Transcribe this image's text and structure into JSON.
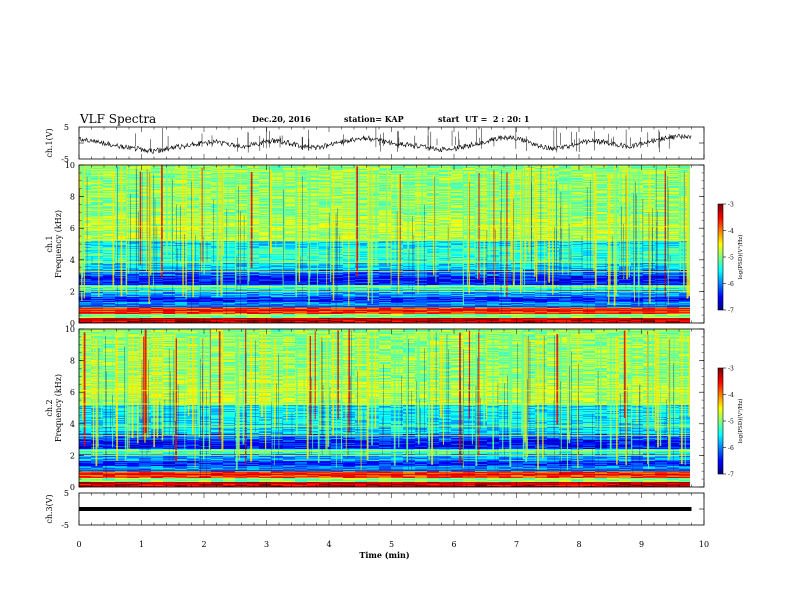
{
  "header": {
    "title": "VLF Spectra",
    "date": "Dec.20, 2016",
    "station": "station= KAP",
    "start_ut": "start  UT =  2 : 20: 1"
  },
  "chart_data": [
    {
      "type": "line",
      "panel": "ch1-waveform",
      "title": "",
      "ylabel": "ch.1(V)",
      "ylim": [
        -5,
        5
      ],
      "yticks": [
        "5",
        "-5"
      ],
      "xlim": [
        0,
        10
      ],
      "series": [
        {
          "x": [
            0,
            0.2,
            0.4,
            0.6,
            0.8,
            1.0,
            1.2,
            1.4,
            1.6,
            1.8,
            2.0,
            2.2,
            2.4,
            2.6,
            2.8,
            3.0,
            3.2,
            3.4,
            3.6,
            3.8,
            4.0,
            4.2,
            4.4,
            4.6,
            4.8,
            5.0,
            5.2,
            5.4,
            5.6,
            5.8,
            6.0,
            6.2,
            6.4,
            6.6,
            6.8,
            7.0,
            7.2,
            7.4,
            7.6,
            7.8,
            8.0,
            8.2,
            8.4,
            8.6,
            8.8,
            9.0,
            9.2,
            9.4,
            9.6,
            9.8
          ],
          "y": [
            1.2,
            0.8,
            0,
            -0.8,
            -1.5,
            -2.0,
            -2.5,
            -1.8,
            -1.2,
            -0.5,
            0,
            0.3,
            -0.5,
            -1.0,
            -0.5,
            0.5,
            0.8,
            -0.3,
            -1.2,
            -1.5,
            -0.8,
            0.2,
            1.0,
            1.5,
            0.8,
            0,
            -0.5,
            -0.8,
            -1.5,
            -2.0,
            -1.8,
            -1.0,
            0,
            1.0,
            1.8,
            1.5,
            0.2,
            -1.0,
            -1.8,
            -1.2,
            0,
            0.5,
            0.3,
            -0.5,
            -1.0,
            -0.3,
            0.8,
            1.5,
            2.0,
            1.8
          ]
        }
      ]
    },
    {
      "type": "heatmap",
      "panel": "ch1-spectrogram",
      "ylabel_lines": [
        "ch.1",
        "Frequency (kHz)"
      ],
      "ylim": [
        0,
        10
      ],
      "yticks": [
        "0",
        "2",
        "4",
        "6",
        "8",
        "10"
      ],
      "xlim": [
        0,
        10
      ],
      "colorbar": {
        "label": "log(PSD)(V²/Hz)",
        "range": [
          -7,
          -3
        ],
        "ticks": [
          "-3",
          "-4",
          "-5",
          "-6",
          "-7"
        ]
      }
    },
    {
      "type": "heatmap",
      "panel": "ch2-spectrogram",
      "ylabel_lines": [
        "ch.2",
        "Frequency (kHz)"
      ],
      "ylim": [
        0,
        10
      ],
      "yticks": [
        "0",
        "2",
        "4",
        "6",
        "8",
        "10"
      ],
      "xlim": [
        0,
        10
      ],
      "colorbar": {
        "label": "log(PSD)(V²/Hz)",
        "range": [
          -7,
          -3
        ],
        "ticks": [
          "-3",
          "-4",
          "-5",
          "-6",
          "-7"
        ]
      }
    },
    {
      "type": "line",
      "panel": "ch3-waveform",
      "ylabel": "ch.3(V)",
      "ylim": [
        -5,
        5
      ],
      "yticks": [
        "5",
        "-5"
      ],
      "xlim": [
        0,
        10
      ],
      "series": [
        {
          "x": [
            0,
            9.8
          ],
          "y": [
            0,
            0
          ]
        }
      ]
    }
  ],
  "x_axis": {
    "label": "Time (min)",
    "ticks": [
      "0",
      "1",
      "2",
      "3",
      "4",
      "5",
      "6",
      "7",
      "8",
      "9",
      "10"
    ]
  }
}
